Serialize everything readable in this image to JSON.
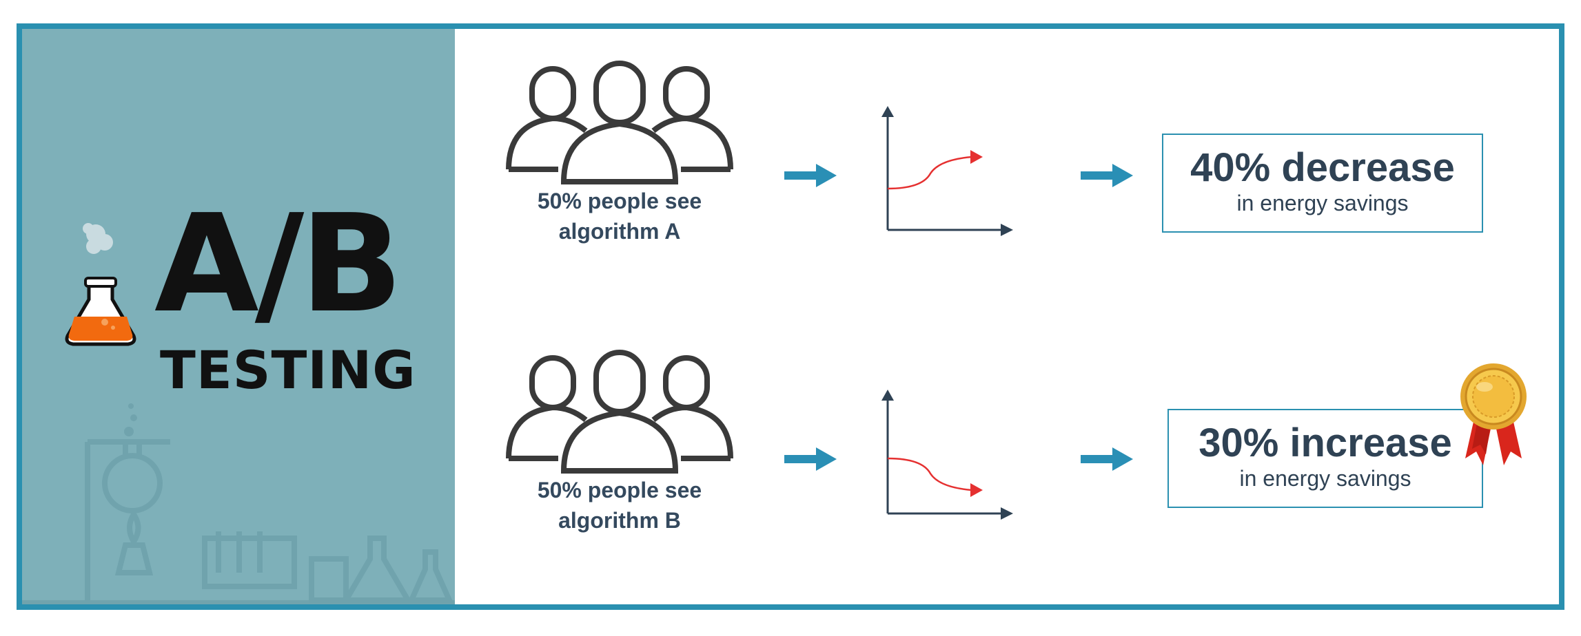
{
  "logo": {
    "title_main": "A/B",
    "title_sub": "TESTING"
  },
  "variants": [
    {
      "caption_line1": "50% people see",
      "caption_line2": "algorithm A",
      "result_value": "40% decrease",
      "result_label": "in energy savings",
      "trend": "up"
    },
    {
      "caption_line1": "50% people see",
      "caption_line2": "algorithm B",
      "result_value": "30% increase",
      "result_label": "in energy savings",
      "trend": "down"
    }
  ],
  "colors": {
    "frame": "#2a90b0",
    "left_panel": "#7eb0b9",
    "flow_arrow": "#2a8fb5",
    "trend_line": "#e53030",
    "axis": "#2f4254",
    "text_dark": "#34495e",
    "flask_liquid": "#f26a0f",
    "medal_gold": "#e3a72f",
    "medal_ribbon": "#d9261c"
  },
  "icons": [
    "flask-icon",
    "people-group-icon",
    "arrow-right-icon",
    "trend-chart-icon",
    "medal-icon"
  ]
}
